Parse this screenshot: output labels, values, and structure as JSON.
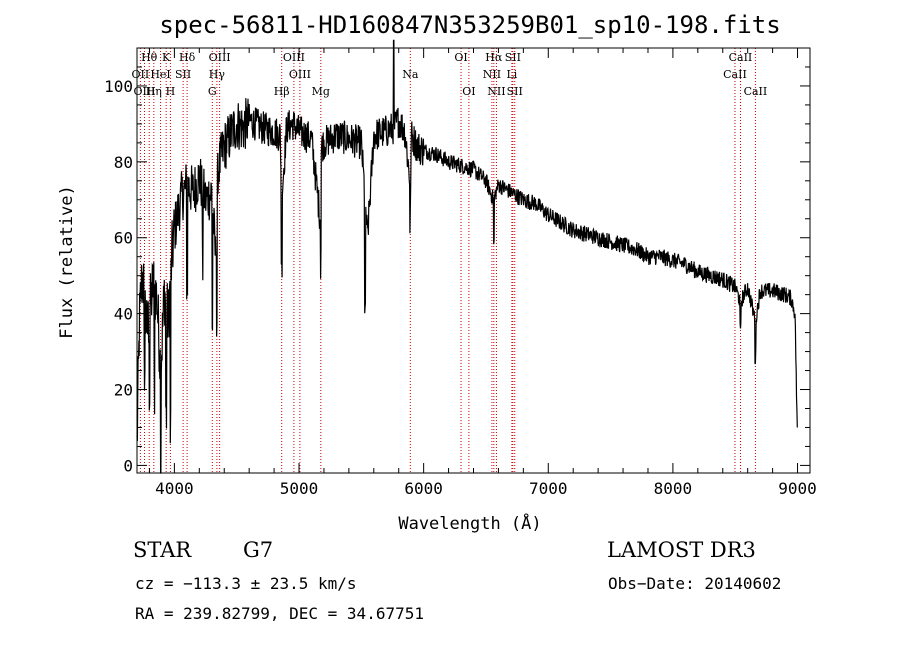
{
  "chart_data": {
    "type": "line",
    "title": "spec-56811-HD160847N353259B01_sp10-198.fits",
    "xlabel": "Wavelength (Å)",
    "ylabel": "Flux (relative)",
    "xlim": [
      3700,
      9100
    ],
    "ylim": [
      -2,
      110
    ],
    "xticks": [
      4000,
      5000,
      6000,
      7000,
      8000,
      9000
    ],
    "yticks": [
      0,
      20,
      40,
      60,
      80,
      100
    ],
    "series": [
      {
        "name": "spectrum",
        "anchors_x": [
          3700,
          3720,
          3740,
          3760,
          3780,
          3800,
          3830,
          3860,
          3890,
          3920,
          3950,
          3980,
          4000,
          4050,
          4100,
          4150,
          4200,
          4250,
          4300,
          4330,
          4350,
          4400,
          4450,
          4500,
          4550,
          4600,
          4700,
          4800,
          4850,
          4860,
          4900,
          4950,
          5000,
          5100,
          5170,
          5180,
          5200,
          5300,
          5400,
          5500,
          5550,
          5600,
          5700,
          5760,
          5800,
          5850,
          5890,
          5900,
          5950,
          6000,
          6100,
          6200,
          6300,
          6400,
          6500,
          6560,
          6600,
          6700,
          6800,
          6900,
          7000,
          7100,
          7200,
          7300,
          7400,
          7500,
          7600,
          7700,
          7800,
          7900,
          8000,
          8100,
          8200,
          8300,
          8400,
          8500,
          8542,
          8600,
          8662,
          8700,
          8800,
          8900,
          8950,
          8980,
          9000
        ],
        "anchors_y": [
          5,
          38,
          50,
          45,
          35,
          40,
          48,
          44,
          25,
          46,
          38,
          55,
          62,
          70,
          74,
          72,
          76,
          70,
          72,
          55,
          78,
          84,
          87,
          90,
          89,
          91,
          89,
          88,
          87,
          70,
          89,
          90,
          88,
          86,
          65,
          84,
          85,
          87,
          86,
          85,
          60,
          87,
          88,
          89,
          91,
          88,
          75,
          87,
          84,
          83,
          82,
          80,
          79,
          78,
          75,
          70,
          74,
          72,
          70,
          69,
          66,
          64,
          62,
          61,
          60,
          59,
          58,
          57,
          55,
          55,
          54,
          53,
          51,
          50,
          49,
          47,
          43,
          47,
          38,
          46,
          46,
          45,
          44,
          40,
          5
        ]
      }
    ],
    "spectral_lines": [
      {
        "label": "Hθ",
        "x": 3798,
        "row": 1
      },
      {
        "label": "K",
        "x": 3934,
        "row": 1
      },
      {
        "label": "Hδ",
        "x": 4102,
        "row": 1
      },
      {
        "label": "OIII",
        "x": 4363,
        "row": 1
      },
      {
        "label": "OIII",
        "x": 4959,
        "row": 1
      },
      {
        "label": "OI",
        "x": 6300,
        "row": 1
      },
      {
        "label": "Hα",
        "x": 6563,
        "row": 1
      },
      {
        "label": "SII",
        "x": 6716,
        "row": 1
      },
      {
        "label": "CaII",
        "x": 8542,
        "row": 1
      },
      {
        "label": "OII",
        "x": 3727,
        "row": 2
      },
      {
        "label": "HeI",
        "x": 3889,
        "row": 2
      },
      {
        "label": "SII",
        "x": 4070,
        "row": 2
      },
      {
        "label": "Hγ",
        "x": 4341,
        "row": 2
      },
      {
        "label": "OIII",
        "x": 5007,
        "row": 2
      },
      {
        "label": "Na",
        "x": 5893,
        "row": 2
      },
      {
        "label": "NII",
        "x": 6548,
        "row": 2
      },
      {
        "label": "Li",
        "x": 6708,
        "row": 2
      },
      {
        "label": "CaII",
        "x": 8498,
        "row": 2
      },
      {
        "label": "OIII",
        "x": 3760,
        "row": 3
      },
      {
        "label": "Hη",
        "x": 3835,
        "row": 3
      },
      {
        "label": "H",
        "x": 3968,
        "row": 3
      },
      {
        "label": "G",
        "x": 4304,
        "row": 3
      },
      {
        "label": "Hβ",
        "x": 4861,
        "row": 3
      },
      {
        "label": "Mg",
        "x": 5175,
        "row": 3
      },
      {
        "label": "OI",
        "x": 6363,
        "row": 3
      },
      {
        "label": "NII",
        "x": 6584,
        "row": 3
      },
      {
        "label": "SII",
        "x": 6731,
        "row": 3
      },
      {
        "label": "CaII",
        "x": 8662,
        "row": 3
      }
    ]
  },
  "info": {
    "object_class": "STAR",
    "subclass": "G7",
    "survey": "LAMOST DR3",
    "cz": "cz = −113.3 ± 23.5 km/s",
    "obs_date": "Obs−Date: 20140602",
    "coords": "RA = 239.82799, DEC =  34.67751"
  },
  "colors": {
    "line": "#000000",
    "marker": "#cc0000"
  }
}
